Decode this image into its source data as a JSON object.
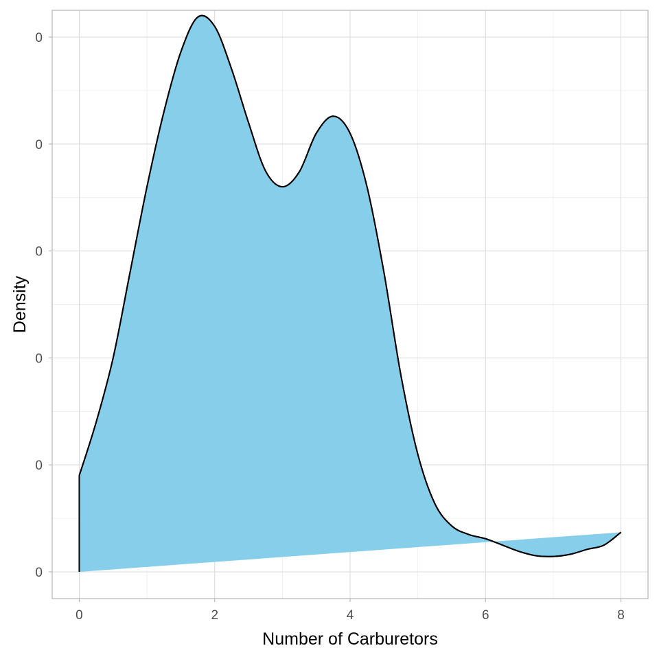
{
  "chart_data": {
    "type": "area",
    "title": "",
    "xlabel": "Number of Carburetors",
    "ylabel": "Density",
    "xlim": [
      -0.4,
      8.4
    ],
    "ylim": [
      -0.0125,
      0.2625
    ],
    "x_ticks": [
      0,
      2,
      4,
      6,
      8
    ],
    "x_tick_labels": [
      "0",
      "2",
      "4",
      "6",
      "8"
    ],
    "y_ticks": [
      0,
      0.05,
      0.1,
      0.15,
      0.2,
      0.25
    ],
    "y_tick_labels": [
      "0",
      "0",
      "0",
      "0",
      "0",
      "0"
    ],
    "grid": true,
    "legend": "none",
    "fill_color": "#87CEEB",
    "line_color": "#000000",
    "series": [
      {
        "x": [
          0,
          0.25,
          0.5,
          0.75,
          1.0,
          1.25,
          1.5,
          1.75,
          2.0,
          2.25,
          2.5,
          2.75,
          3.0,
          3.25,
          3.5,
          3.75,
          4.0,
          4.25,
          4.5,
          4.75,
          5.0,
          5.25,
          5.5,
          5.75,
          6.0,
          6.25,
          6.5,
          6.75,
          7.0,
          7.25,
          7.5,
          7.75,
          8.0
        ],
        "y": [
          0.045,
          0.07,
          0.1,
          0.14,
          0.18,
          0.215,
          0.243,
          0.2593,
          0.255,
          0.235,
          0.21,
          0.1875,
          0.18,
          0.187,
          0.205,
          0.213,
          0.205,
          0.18,
          0.14,
          0.092,
          0.055,
          0.032,
          0.0215,
          0.0175,
          0.0155,
          0.0125,
          0.0095,
          0.0075,
          0.0072,
          0.0082,
          0.0105,
          0.0125,
          0.0185
        ]
      }
    ]
  }
}
